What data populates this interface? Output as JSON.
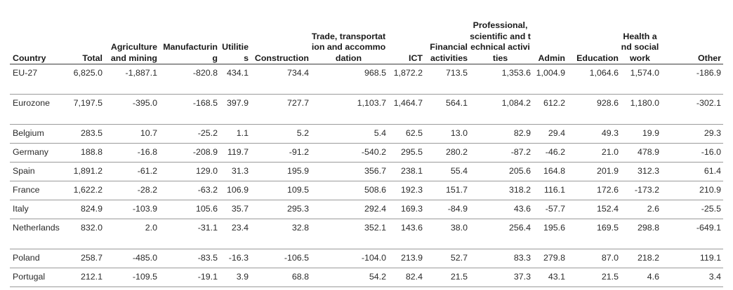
{
  "table": {
    "columns": [
      "Country",
      "Total",
      "Agriculture and mining",
      "Manufacturing",
      "Utilities",
      "Construction",
      "Trade, transportation and accommodation",
      "ICT",
      "Financial activities",
      "Professional, scientific and technical activities",
      "Admin",
      "Education",
      "Health and social work",
      "Other"
    ],
    "rows": [
      [
        "EU-27",
        "6,825.0",
        "-1,887.1",
        "-820.8",
        "434.1",
        "734.4",
        "968.5",
        "1,872.2",
        "713.5",
        "1,353.6",
        "1,004.9",
        "1,064.6",
        "1,574.0",
        "-186.9"
      ],
      [
        "Eurozone",
        "7,197.5",
        "-395.0",
        "-168.5",
        "397.9",
        "727.7",
        "1,103.7",
        "1,464.7",
        "564.1",
        "1,084.2",
        "612.2",
        "928.6",
        "1,180.0",
        "-302.1"
      ],
      [
        "Belgium",
        "283.5",
        "10.7",
        "-25.2",
        "1.1",
        "5.2",
        "5.4",
        "62.5",
        "13.0",
        "82.9",
        "29.4",
        "49.3",
        "19.9",
        "29.3"
      ],
      [
        "Germany",
        "188.8",
        "-16.8",
        "-208.9",
        "119.7",
        "-91.2",
        "-540.2",
        "295.5",
        "280.2",
        "-87.2",
        "-46.2",
        "21.0",
        "478.9",
        "-16.0"
      ],
      [
        "Spain",
        "1,891.2",
        "-61.2",
        "129.0",
        "31.3",
        "195.9",
        "356.7",
        "238.1",
        "55.4",
        "205.6",
        "164.8",
        "201.9",
        "312.3",
        "61.4"
      ],
      [
        "France",
        "1,622.2",
        "-28.2",
        "-63.2",
        "106.9",
        "109.5",
        "508.6",
        "192.3",
        "151.7",
        "318.2",
        "116.1",
        "172.6",
        "-173.2",
        "210.9"
      ],
      [
        "Italy",
        "824.9",
        "-103.9",
        "105.6",
        "35.7",
        "295.3",
        "292.4",
        "169.3",
        "-84.9",
        "43.6",
        "-57.7",
        "152.4",
        "2.6",
        "-25.5"
      ],
      [
        "Netherlands",
        "832.0",
        "2.0",
        "-31.1",
        "23.4",
        "32.8",
        "352.1",
        "143.6",
        "38.0",
        "256.4",
        "195.6",
        "169.5",
        "298.8",
        "-649.1"
      ],
      [
        "Poland",
        "258.7",
        "-485.0",
        "-83.5",
        "-16.3",
        "-106.5",
        "-104.0",
        "213.9",
        "52.7",
        "83.3",
        "279.8",
        "87.0",
        "218.2",
        "119.1"
      ],
      [
        "Portugal",
        "212.1",
        "-109.5",
        "-19.1",
        "3.9",
        "68.8",
        "54.2",
        "82.4",
        "21.5",
        "37.3",
        "43.1",
        "21.5",
        "4.6",
        "3.4"
      ]
    ]
  }
}
